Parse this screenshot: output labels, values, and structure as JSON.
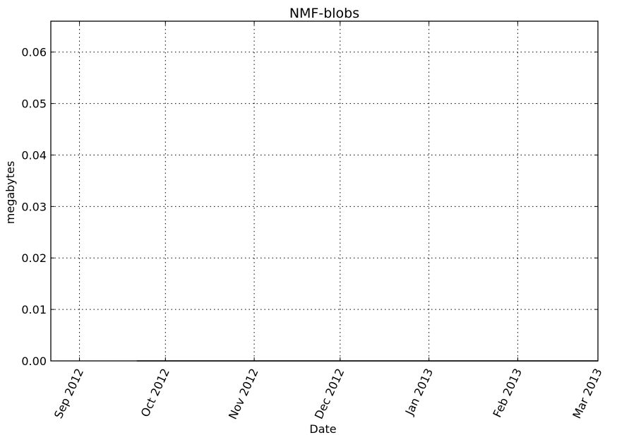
{
  "chart_data": {
    "type": "line",
    "title": "NMF-blobs",
    "xlabel": "Date",
    "ylabel": "megabytes",
    "xlim": [
      "2012-08-22",
      "2013-03-01"
    ],
    "ylim": [
      0,
      0.066
    ],
    "x_ticks": [
      {
        "date": "2012-09-01",
        "label": "Sep 2012"
      },
      {
        "date": "2012-10-01",
        "label": "Oct 2012"
      },
      {
        "date": "2012-11-01",
        "label": "Nov 2012"
      },
      {
        "date": "2012-12-01",
        "label": "Dec 2012"
      },
      {
        "date": "2013-01-01",
        "label": "Jan 2013"
      },
      {
        "date": "2013-02-01",
        "label": "Feb 2013"
      },
      {
        "date": "2013-03-01",
        "label": "Mar 2013"
      }
    ],
    "y_ticks": [
      {
        "value": 0.0,
        "label": "0.00"
      },
      {
        "value": 0.01,
        "label": "0.01"
      },
      {
        "value": 0.02,
        "label": "0.02"
      },
      {
        "value": 0.03,
        "label": "0.03"
      },
      {
        "value": 0.04,
        "label": "0.04"
      },
      {
        "value": 0.05,
        "label": "0.05"
      },
      {
        "value": 0.06,
        "label": "0.06"
      }
    ],
    "grid": true,
    "series": [
      {
        "color": "#000000",
        "x": [
          "2012-09-21",
          "2012-10-15",
          "2012-11-15",
          "2012-12-15",
          "2013-01-15",
          "2013-02-15",
          "2013-03-01"
        ],
        "y": [
          0,
          0,
          0,
          0,
          0,
          0,
          0
        ]
      }
    ]
  }
}
